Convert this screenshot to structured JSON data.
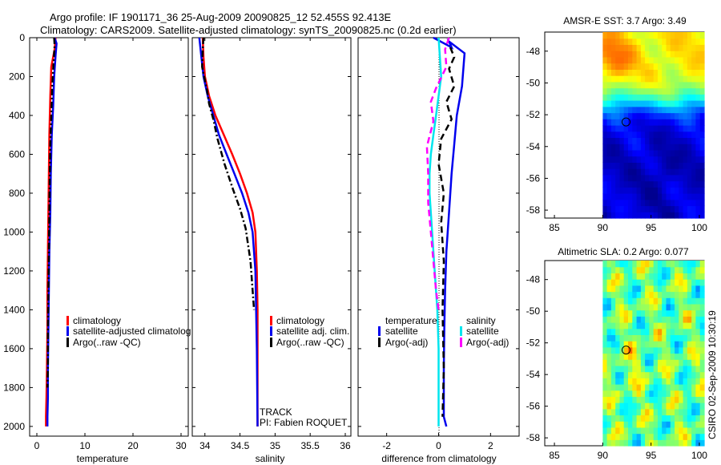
{
  "header": {
    "title_line1": "Argo profile: IF 1901171_36 25-Aug-2009 20090825_12 52.455S 92.413E",
    "title_line2": "Climatology: CARS2009. Satellite-adjusted climatology: synTS_20090825.nc (0.2d earlier)"
  },
  "colors": {
    "climatology": "#ff0000",
    "satellite": "#0000ee",
    "argo": "#000000",
    "salinity_satellite": "#00e5ee",
    "salinity_argo": "#ff00ff"
  },
  "footer_text": "CSIRO 02-Sep-2009 10:30:19",
  "chart_data": [
    {
      "type": "line",
      "id": "temperature",
      "xlabel": "temperature",
      "ylabel": "",
      "xlim": [
        -1.5,
        31.5
      ],
      "ylim": [
        2050,
        0
      ],
      "xticks": [
        "0",
        "10",
        "20",
        "30"
      ],
      "xtick_values": [
        0,
        10,
        20,
        30
      ],
      "yticks": [
        "0",
        "200",
        "400",
        "600",
        "800",
        "1000",
        "1200",
        "1400",
        "1600",
        "1800",
        "2000"
      ],
      "ytick_values": [
        0,
        200,
        400,
        600,
        800,
        1000,
        1200,
        1400,
        1600,
        1800,
        2000
      ],
      "legend": [
        "climatology",
        "satellite-adjusted climatolog",
        "Argo(..raw -QC)"
      ],
      "series": [
        {
          "name": "climatology",
          "style": "solid",
          "color": "#ff0000",
          "x": [
            3.9,
            3.7,
            3.0,
            2.8,
            2.6,
            2.5,
            2.4,
            2.3,
            2.2,
            2.2,
            2.1,
            2.0,
            1.9,
            1.9
          ],
          "y": [
            0,
            60,
            150,
            300,
            500,
            700,
            900,
            1100,
            1300,
            1500,
            1700,
            1850,
            1950,
            2000
          ]
        },
        {
          "name": "satellite-adjusted climatology",
          "style": "solid",
          "color": "#0000ee",
          "x": [
            3.7,
            4.1,
            3.9,
            3.6,
            3.4,
            3.1,
            2.9,
            2.8,
            2.6,
            2.5,
            2.4,
            2.3,
            2.3,
            2.2,
            2.2
          ],
          "y": [
            0,
            30,
            90,
            200,
            350,
            500,
            700,
            900,
            1100,
            1300,
            1500,
            1700,
            1850,
            1950,
            2000
          ]
        },
        {
          "name": "Argo(..raw -QC)",
          "style": "dashdot",
          "color": "#000000",
          "x": [
            3.6,
            3.7,
            3.5,
            3.2,
            3.0,
            2.8,
            2.7,
            2.6,
            2.5,
            2.4,
            2.3,
            2.3,
            2.2
          ],
          "y": [
            0,
            40,
            120,
            250,
            400,
            550,
            700,
            900,
            1100,
            1300,
            1500,
            1700,
            1800
          ]
        }
      ]
    },
    {
      "type": "line",
      "id": "salinity",
      "xlabel": "salinity",
      "ylabel": "",
      "xlim": [
        33.82,
        36.08
      ],
      "ylim": [
        2050,
        0
      ],
      "xticks": [
        "34",
        "34.5",
        "35",
        "35.5",
        "36"
      ],
      "xtick_values": [
        34,
        34.5,
        35,
        35.5,
        36
      ],
      "legend": [
        "climatology",
        "satellite adj. clim.",
        "Argo(..raw -QC)"
      ],
      "annotations": [
        "TRACK",
        "PI: Fabien ROQUET"
      ],
      "series": [
        {
          "name": "climatology",
          "style": "solid",
          "color": "#ff0000",
          "x": [
            33.97,
            33.98,
            34.0,
            34.06,
            34.15,
            34.27,
            34.39,
            34.5,
            34.6,
            34.68,
            34.72,
            34.74,
            34.75,
            34.75,
            34.75
          ],
          "y": [
            0,
            100,
            200,
            300,
            400,
            500,
            600,
            700,
            800,
            900,
            1000,
            1200,
            1400,
            1700,
            2000
          ]
        },
        {
          "name": "satellite adj. clim.",
          "style": "solid",
          "color": "#0000ee",
          "x": [
            33.92,
            33.95,
            33.98,
            34.04,
            34.12,
            34.2,
            34.31,
            34.42,
            34.53,
            34.62,
            34.68,
            34.72,
            34.74,
            34.75
          ],
          "y": [
            0,
            100,
            200,
            300,
            400,
            500,
            600,
            700,
            800,
            900,
            1000,
            1200,
            1600,
            2000
          ]
        },
        {
          "name": "Argo(..raw -QC)",
          "style": "dashdot",
          "color": "#000000",
          "x": [
            33.98,
            33.97,
            33.96,
            34.03,
            34.06,
            34.12,
            34.18,
            34.28,
            34.4,
            34.5,
            34.58,
            34.65,
            34.7
          ],
          "y": [
            0,
            60,
            150,
            270,
            340,
            420,
            520,
            650,
            780,
            880,
            980,
            1150,
            1400
          ]
        }
      ]
    },
    {
      "type": "line",
      "id": "difference",
      "xlabel": "difference from climatology",
      "ylabel": "",
      "xlim": [
        -3.1,
        3.1
      ],
      "ylim": [
        2050,
        0
      ],
      "xticks": [
        "-2",
        "0",
        "2"
      ],
      "xtick_values": [
        -2,
        0,
        2
      ],
      "legend_left_title": "temperature",
      "legend_right_title": "salinity",
      "legend": [
        "satellite",
        "Argo(-adj)",
        "satellite",
        "Argo(-adj)"
      ],
      "series": [
        {
          "name": "temperature satellite",
          "style": "solid",
          "color": "#0000ee",
          "x": [
            -0.2,
            0.5,
            0.4,
            1.0,
            0.9,
            0.7,
            0.6,
            0.5,
            0.4,
            0.3,
            0.25,
            0.22,
            0.2,
            0.2,
            0.2,
            0.3
          ],
          "y": [
            0,
            50,
            20,
            80,
            250,
            400,
            550,
            700,
            900,
            1100,
            1300,
            1500,
            1700,
            1850,
            1950,
            2000
          ]
        },
        {
          "name": "temperature Argo(-adj)",
          "style": "dashed",
          "color": "#000000",
          "x": [
            0.45,
            0.6,
            0.4,
            0.6,
            0.3,
            0.5,
            0.1,
            0.0,
            0.2,
            0.1,
            0.2,
            0.15,
            0.2,
            0.15
          ],
          "y": [
            50,
            100,
            160,
            250,
            330,
            420,
            520,
            650,
            800,
            950,
            1150,
            1400,
            1700,
            1950
          ]
        },
        {
          "name": "salinity satellite",
          "style": "solid",
          "color": "#00e5ee",
          "x": [
            0.0,
            0.05,
            0.1,
            0.0,
            -0.1,
            -0.2,
            -0.3,
            -0.35,
            -0.35,
            -0.25,
            -0.15,
            -0.05,
            0.0,
            0.0,
            0.0
          ],
          "y": [
            0,
            100,
            200,
            300,
            400,
            500,
            600,
            700,
            800,
            1000,
            1200,
            1400,
            1600,
            1800,
            2000
          ]
        },
        {
          "name": "salinity Argo(-adj)",
          "style": "dashed",
          "color": "#ff00ff",
          "x": [
            0.4,
            0.25,
            0.3,
            -0.1,
            -0.3,
            -0.2,
            -0.45,
            -0.4,
            -0.4,
            -0.3,
            -0.2,
            -0.1,
            0.0
          ],
          "y": [
            0,
            60,
            150,
            260,
            330,
            430,
            560,
            700,
            850,
            1000,
            1150,
            1300,
            1400
          ]
        }
      ]
    },
    {
      "type": "heatmap",
      "id": "amsre_sst",
      "title": "AMSR-E SST: 3.7 Argo: 3.49",
      "xlim": [
        84,
        100.5
      ],
      "ylim": [
        -58.5,
        -46.8
      ],
      "xticks": [
        "85",
        "90",
        "95",
        "100"
      ],
      "xtick_values": [
        85,
        90,
        95,
        100
      ],
      "yticks": [
        "-48",
        "-50",
        "-52",
        "-54",
        "-56",
        "-58"
      ],
      "ytick_values": [
        -48,
        -50,
        -52,
        -54,
        -56,
        -58
      ],
      "data_lon_range": [
        90,
        100.5
      ],
      "marker": {
        "lon": 92.413,
        "lat": -52.455
      }
    },
    {
      "type": "heatmap",
      "id": "altimetric_sla",
      "title": "Altimetric SLA: 0.2 Argo: 0.077",
      "xlim": [
        84,
        100.5
      ],
      "ylim": [
        -58.5,
        -46.8
      ],
      "xticks": [
        "85",
        "90",
        "95",
        "100"
      ],
      "xtick_values": [
        85,
        90,
        95,
        100
      ],
      "yticks": [
        "-48",
        "-50",
        "-52",
        "-54",
        "-56",
        "-58"
      ],
      "ytick_values": [
        -48,
        -50,
        -52,
        -54,
        -56,
        -58
      ],
      "data_lon_range": [
        90,
        100.5
      ],
      "marker": {
        "lon": 92.413,
        "lat": -52.455
      }
    }
  ]
}
